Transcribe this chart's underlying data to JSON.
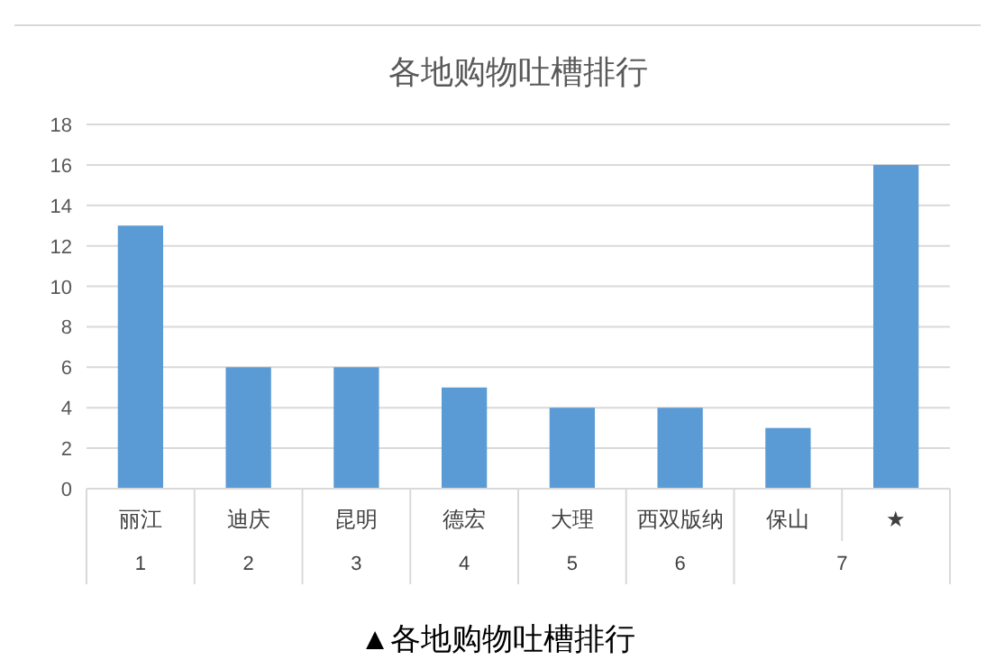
{
  "chart_data": {
    "type": "bar",
    "title": "各地购物吐槽排行",
    "categories": [
      "丽江",
      "迪庆",
      "昆明",
      "德宏",
      "大理",
      "西双版纳",
      "保山",
      "★"
    ],
    "values": [
      13,
      6,
      6,
      5,
      4,
      4,
      3,
      16
    ],
    "color": "#5b9bd5",
    "ylim": [
      0,
      18
    ],
    "yticks": [
      0,
      2,
      4,
      6,
      8,
      10,
      12,
      14,
      16,
      18
    ],
    "grid": "y",
    "annotations": [
      "1",
      "2",
      "3",
      "4",
      "5",
      "6",
      "7",
      "▲各地购物吐槽排行"
    ]
  }
}
